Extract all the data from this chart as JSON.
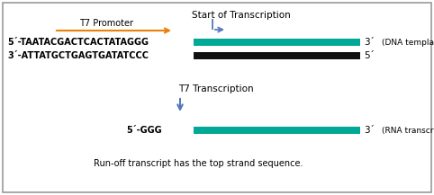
{
  "bg_color": "#ffffff",
  "border_color": "#999999",
  "teal_color": "#00a896",
  "black_color": "#111111",
  "orange_color": "#e8820a",
  "blue_color": "#5577bb",
  "top_label": "Start of Transcription",
  "t7_promoter_label": "T7 Promoter",
  "top_strand_prefix": "5´-TAATACGACTCACTATAGGG",
  "top_strand_end": "3´",
  "bottom_strand_prefix": "3´-ATTATGCTGAGTGATATCCC",
  "bottom_strand_end": "5´",
  "dna_label": "(DNA template)",
  "mid_label": "T7 Transcription",
  "rna_prefix": "5´-GGG",
  "rna_end": "3´",
  "rna_label": "(RNA transcript)",
  "bottom_label": "Run-off transcript has the top strand sequence.",
  "fig_width": 4.82,
  "fig_height": 2.17,
  "dpi": 100
}
